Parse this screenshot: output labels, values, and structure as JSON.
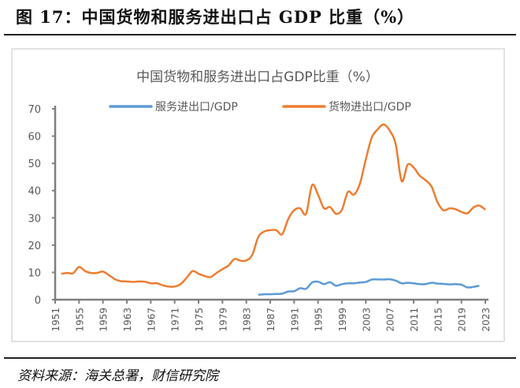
{
  "figure_title": "图 17：中国货物和服务进出口占 GDP 比重（%）",
  "source": "资料来源：海关总署，财信研究院",
  "chart_data": {
    "type": "line",
    "title": "中国货物和服务进出口占GDP比重（%）",
    "xlabel": "",
    "ylabel": "",
    "xlim": [
      1951,
      2023
    ],
    "ylim": [
      0,
      70
    ],
    "yticks": [
      0,
      10,
      20,
      30,
      40,
      50,
      60,
      70
    ],
    "xticks": [
      1951,
      1955,
      1959,
      1963,
      1967,
      1971,
      1975,
      1979,
      1983,
      1987,
      1991,
      1995,
      1999,
      2003,
      2007,
      2011,
      2015,
      2019,
      2023
    ],
    "grid": false,
    "legend": "top",
    "series": [
      {
        "name": "服务进出口/GDP",
        "color": "#5B9BD5",
        "x": [
          1985,
          1986,
          1987,
          1988,
          1989,
          1990,
          1991,
          1992,
          1993,
          1994,
          1995,
          1996,
          1997,
          1998,
          1999,
          2000,
          2001,
          2002,
          2003,
          2004,
          2005,
          2006,
          2007,
          2008,
          2009,
          2010,
          2011,
          2012,
          2013,
          2014,
          2015,
          2016,
          2017,
          2018,
          2019,
          2020,
          2021,
          2022
        ],
        "y": [
          1.8,
          2.0,
          2.0,
          2.1,
          2.2,
          3.0,
          3.1,
          4.2,
          4.0,
          6.3,
          6.6,
          5.7,
          6.4,
          5.1,
          5.7,
          6.0,
          6.0,
          6.3,
          6.5,
          7.4,
          7.4,
          7.4,
          7.5,
          7.0,
          6.0,
          6.2,
          6.0,
          5.7,
          5.7,
          6.2,
          5.9,
          5.8,
          5.6,
          5.7,
          5.5,
          4.5,
          4.7,
          5.1
        ]
      },
      {
        "name": "货物进出口/GDP",
        "color": "#ED7D31",
        "x": [
          1952,
          1953,
          1954,
          1955,
          1956,
          1957,
          1958,
          1959,
          1960,
          1961,
          1962,
          1963,
          1964,
          1965,
          1966,
          1967,
          1968,
          1969,
          1970,
          1971,
          1972,
          1973,
          1974,
          1975,
          1976,
          1977,
          1978,
          1979,
          1980,
          1981,
          1982,
          1983,
          1984,
          1985,
          1986,
          1987,
          1988,
          1989,
          1990,
          1991,
          1992,
          1993,
          1994,
          1995,
          1996,
          1997,
          1998,
          1999,
          2000,
          2001,
          2002,
          2003,
          2004,
          2005,
          2006,
          2007,
          2008,
          2009,
          2010,
          2011,
          2012,
          2013,
          2014,
          2015,
          2016,
          2017,
          2018,
          2019,
          2020,
          2021,
          2022,
          2023
        ],
        "y": [
          9.5,
          9.8,
          9.7,
          12.0,
          10.5,
          9.8,
          9.8,
          10.3,
          9.0,
          7.5,
          6.8,
          6.7,
          6.5,
          6.7,
          6.6,
          6.0,
          6.0,
          5.3,
          4.8,
          4.8,
          5.7,
          8.0,
          10.5,
          9.5,
          8.7,
          8.3,
          9.8,
          11.2,
          12.5,
          14.9,
          14.3,
          14.4,
          16.5,
          23.0,
          25.0,
          25.5,
          25.5,
          24.0,
          29.5,
          32.8,
          33.5,
          31.5,
          42.0,
          38.5,
          33.5,
          34.0,
          31.5,
          33.0,
          39.5,
          38.5,
          42.5,
          51.5,
          59.5,
          62.5,
          64.3,
          62.0,
          57.0,
          43.5,
          49.5,
          48.5,
          45.5,
          43.8,
          41.5,
          35.7,
          32.8,
          33.5,
          33.2,
          32.2,
          31.7,
          33.8,
          34.5,
          33.0
        ]
      }
    ]
  }
}
